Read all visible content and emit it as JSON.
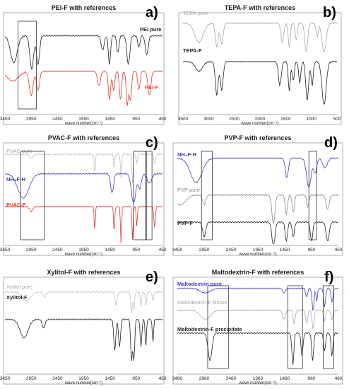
{
  "colors": {
    "black": "#222222",
    "grey": "#8a8a8a",
    "lightgrey": "#a8a8a8",
    "red": "#e8392c",
    "blue": "#3a3ad8"
  },
  "chart_data": [
    {
      "type": "line",
      "letter": "a)",
      "title": "PEI-F with references",
      "xlabel": "wave number(cm⁻¹)",
      "xlim": [
        3450,
        450
      ],
      "xticks": [
        "3450",
        "2950",
        "2450",
        "1950",
        "1450",
        "950",
        "450"
      ],
      "series": [
        {
          "name": "PEI pure",
          "color": "black",
          "baseline": 0.18,
          "peaks": [
            [
              3280,
              0.28,
              90
            ],
            [
              2940,
              0.35,
              50
            ],
            [
              2820,
              0.3,
              40
            ],
            [
              1590,
              0.15,
              40
            ],
            [
              1460,
              0.3,
              30
            ],
            [
              1300,
              0.18,
              30
            ],
            [
              1100,
              0.3,
              40
            ],
            [
              900,
              0.12,
              30
            ],
            [
              750,
              0.2,
              40
            ]
          ]
        },
        {
          "name": "PEI-F",
          "color": "red",
          "baseline": 0.55,
          "peaks": [
            [
              3300,
              0.1,
              150
            ],
            [
              2950,
              0.25,
              50
            ],
            [
              2820,
              0.2,
              40
            ],
            [
              1660,
              0.15,
              40
            ],
            [
              1460,
              0.3,
              30
            ],
            [
              1380,
              0.2,
              30
            ],
            [
              1250,
              0.3,
              30
            ],
            [
              1120,
              0.35,
              30
            ],
            [
              1060,
              0.3,
              30
            ],
            [
              900,
              0.2,
              30
            ],
            [
              700,
              0.25,
              40
            ]
          ]
        }
      ],
      "boxes": [
        [
          3200,
          2850
        ]
      ]
    },
    {
      "type": "line",
      "letter": "b)",
      "title": "TEPA-F with references",
      "xlabel": "wave number(cm⁻¹)",
      "xlim": [
        3600,
        500
      ],
      "xticks": [
        "3500",
        "3000",
        "2500",
        "2000",
        "1500",
        "1000",
        "500"
      ],
      "series": [
        {
          "name": "TEPA pure",
          "color": "lightgrey",
          "baseline": 0.05,
          "peaks": [
            [
              3280,
              0.2,
              120
            ],
            [
              2920,
              0.25,
              40
            ],
            [
              2820,
              0.22,
              40
            ],
            [
              1600,
              0.2,
              40
            ],
            [
              1460,
              0.25,
              30
            ],
            [
              1320,
              0.18,
              30
            ],
            [
              1120,
              0.3,
              40
            ],
            [
              900,
              0.15,
              30
            ],
            [
              760,
              0.3,
              60
            ]
          ]
        },
        {
          "name": "TEPA-F",
          "color": "black",
          "baseline": 0.45,
          "peaks": [
            [
              3280,
              0.1,
              100
            ],
            [
              2920,
              0.35,
              40
            ],
            [
              2820,
              0.3,
              40
            ],
            [
              1650,
              0.25,
              40
            ],
            [
              1460,
              0.3,
              30
            ],
            [
              1380,
              0.2,
              30
            ],
            [
              1250,
              0.22,
              30
            ],
            [
              1100,
              0.4,
              40
            ],
            [
              1000,
              0.25,
              30
            ],
            [
              760,
              0.45,
              60
            ]
          ]
        }
      ],
      "boxes": []
    },
    {
      "type": "line",
      "letter": "c)",
      "title": "PVAC-F with references",
      "xlabel": "wave number(cm⁻¹)",
      "xlim": [
        3450,
        450
      ],
      "xticks": [
        "3450",
        "2950",
        "2450",
        "1950",
        "1450",
        "950",
        "450"
      ],
      "series": [
        {
          "name": "PVAC pure",
          "color": "lightgrey",
          "dashed": true,
          "baseline": 0.06,
          "peaks": [
            [
              2950,
              0.05,
              40
            ],
            [
              1740,
              0.2,
              15
            ],
            [
              1370,
              0.15,
              15
            ],
            [
              1240,
              0.25,
              15
            ],
            [
              1020,
              0.3,
              15
            ],
            [
              940,
              0.1,
              15
            ],
            [
              600,
              0.1,
              20
            ]
          ]
        },
        {
          "name": "NH₄F·H",
          "color": "blue",
          "baseline": 0.26,
          "peaks": [
            [
              3100,
              0.25,
              150
            ],
            [
              1410,
              0.2,
              40
            ],
            [
              1000,
              0.3,
              60
            ],
            [
              880,
              0.15,
              40
            ],
            [
              700,
              0.1,
              60
            ]
          ]
        },
        {
          "name": "PVAC-F",
          "color": "red",
          "baseline": 0.6,
          "peaks": [
            [
              2950,
              0.05,
              40
            ],
            [
              1740,
              0.25,
              15
            ],
            [
              1370,
              0.28,
              15
            ],
            [
              1240,
              0.38,
              15
            ],
            [
              1020,
              0.35,
              15
            ],
            [
              940,
              0.2,
              15
            ],
            [
              600,
              0.22,
              20
            ]
          ]
        }
      ],
      "boxes": [
        [
          3150,
          2700
        ],
        [
          1000,
          750
        ],
        [
          780,
          650
        ]
      ]
    },
    {
      "type": "line",
      "letter": "d)",
      "title": "PVP-F with references",
      "xlabel": "wave number(cm⁻¹)",
      "xlim": [
        3450,
        450
      ],
      "xticks": [
        "3450",
        "2950",
        "2450",
        "1950",
        "1450",
        "950",
        "450"
      ],
      "series": [
        {
          "name": "NH₄F·H",
          "color": "blue",
          "baseline": 0.1,
          "peaks": [
            [
              3100,
              0.25,
              150
            ],
            [
              1410,
              0.2,
              40
            ],
            [
              1000,
              0.3,
              60
            ],
            [
              880,
              0.15,
              40
            ],
            [
              700,
              0.1,
              60
            ]
          ]
        },
        {
          "name": "PVP pure",
          "color": "grey",
          "baseline": 0.48,
          "peaks": [
            [
              3400,
              0.1,
              150
            ],
            [
              2950,
              0.1,
              40
            ],
            [
              1660,
              0.3,
              40
            ],
            [
              1420,
              0.2,
              30
            ],
            [
              1290,
              0.18,
              30
            ],
            [
              1020,
              0.12,
              30
            ],
            [
              650,
              0.15,
              40
            ]
          ]
        },
        {
          "name": "PVP-F",
          "color": "black",
          "baseline": 0.76,
          "peaks": [
            [
              2950,
              0.15,
              40
            ],
            [
              1660,
              0.25,
              40
            ],
            [
              1420,
              0.2,
              30
            ],
            [
              1290,
              0.15,
              30
            ],
            [
              950,
              0.2,
              30
            ],
            [
              650,
              0.2,
              40
            ]
          ]
        }
      ],
      "boxes": [
        [
          3000,
          2800
        ],
        [
          1000,
          850
        ]
      ]
    },
    {
      "type": "line",
      "letter": "e)",
      "title": "Xylitol-F with references",
      "xlabel": "wave number(cm⁻¹)",
      "xlim": [
        3750,
        450
      ],
      "xticks": [
        "3450",
        "2950",
        "2450",
        "1950",
        "1450",
        "950",
        "450"
      ],
      "series": [
        {
          "name": "Xylitol pure",
          "color": "lightgrey",
          "dashed": true,
          "baseline": 0.1,
          "peaks": [
            [
              3300,
              0.1,
              120
            ],
            [
              2920,
              0.05,
              40
            ],
            [
              1420,
              0.15,
              30
            ],
            [
              1100,
              0.25,
              20
            ],
            [
              1050,
              0.2,
              20
            ],
            [
              900,
              0.15,
              20
            ],
            [
              800,
              0.15,
              20
            ],
            [
              650,
              0.1,
              20
            ]
          ]
        },
        {
          "name": "Xylitol-F",
          "color": "black",
          "baseline": 0.4,
          "peaks": [
            [
              3350,
              0.2,
              120
            ],
            [
              2940,
              0.1,
              40
            ],
            [
              1450,
              0.35,
              30
            ],
            [
              1350,
              0.3,
              30
            ],
            [
              1100,
              0.45,
              25
            ],
            [
              1050,
              0.45,
              25
            ],
            [
              900,
              0.3,
              25
            ],
            [
              800,
              0.3,
              20
            ],
            [
              650,
              0.25,
              20
            ]
          ]
        }
      ],
      "boxes": []
    },
    {
      "type": "line",
      "letter": "f)",
      "title": "Maltodextrin-F with references",
      "xlabel": "wave number(cm⁻¹)",
      "xlim": [
        3960,
        460
      ],
      "xticks": [
        "3460",
        "2960",
        "2460",
        "1960",
        "1460",
        "960",
        "460"
      ],
      "series": [
        {
          "name": "Maltodextrin pure",
          "color": "blue",
          "baseline": 0.06,
          "peaks": [
            [
              3350,
              0.05,
              150
            ],
            [
              1640,
              0.05,
              40
            ],
            [
              1150,
              0.1,
              30
            ],
            [
              1010,
              0.25,
              30
            ],
            [
              930,
              0.15,
              20
            ],
            [
              760,
              0.2,
              30
            ],
            [
              600,
              0.15,
              30
            ]
          ]
        },
        {
          "name": "Maltodextrin-F filtrate",
          "color": "lightgrey",
          "baseline": 0.3,
          "peaks": [
            [
              3350,
              0.1,
              150
            ],
            [
              1640,
              0.1,
              40
            ],
            [
              1420,
              0.15,
              30
            ],
            [
              1150,
              0.15,
              30
            ],
            [
              1010,
              0.2,
              30
            ],
            [
              760,
              0.12,
              30
            ],
            [
              600,
              0.1,
              30
            ]
          ]
        },
        {
          "name": "Maltodextrin-F precipitate",
          "color": "black",
          "baseline": 0.55,
          "peaks": [
            [
              3250,
              0.3,
              60
            ],
            [
              1450,
              0.35,
              30
            ],
            [
              1250,
              0.25,
              30
            ],
            [
              1020,
              0.3,
              30
            ],
            [
              760,
              0.2,
              30
            ],
            [
              600,
              0.25,
              30
            ]
          ]
        }
      ],
      "boxes": [
        [
          3300,
          2850
        ],
        [
          1560,
          1240
        ],
        [
          790,
          560
        ]
      ]
    }
  ]
}
